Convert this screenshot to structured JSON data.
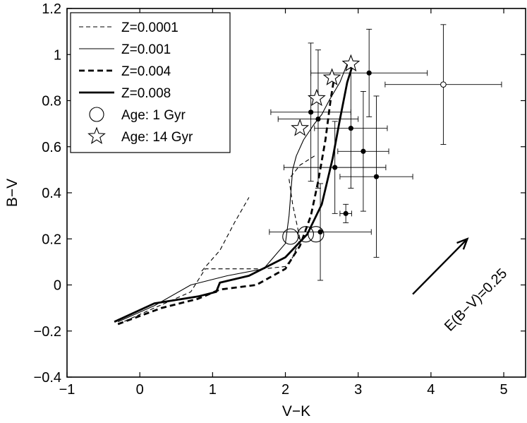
{
  "chart_data": {
    "type": "scatter",
    "xlabel": "V−K",
    "ylabel": "B−V",
    "xlim": [
      -1,
      5.3
    ],
    "ylim": [
      -0.4,
      1.2
    ],
    "xticks": [
      -1,
      0,
      1,
      2,
      3,
      4,
      5
    ],
    "yticks": [
      -0.4,
      -0.2,
      0,
      0.2,
      0.4,
      0.6,
      0.8,
      1,
      1.2
    ],
    "xtick_labels": [
      "−1",
      "0",
      "1",
      "2",
      "3",
      "4",
      "5"
    ],
    "ytick_labels": [
      "−0.4",
      "−0.2",
      "0",
      "0.2",
      "0.4",
      "0.6",
      "0.8",
      "1",
      "1.2"
    ],
    "grid": false,
    "legend_position": "top-left",
    "series": [
      {
        "name": "Z=0.0001",
        "kind": "line",
        "style": "thin-dashed",
        "x": [
          -0.3,
          0.2,
          0.7,
          0.9,
          1.3,
          1.7,
          2.0,
          2.1,
          2.2,
          2.1,
          2.05,
          2.2,
          2.4
        ],
        "y": [
          -0.17,
          -0.1,
          -0.03,
          0.07,
          0.07,
          0.07,
          0.08,
          0.12,
          0.2,
          0.35,
          0.46,
          0.52,
          0.56
        ]
      },
      {
        "name": "",
        "kind": "line",
        "style": "thin-dashed",
        "x": [
          0.85,
          1.1,
          1.3,
          1.5
        ],
        "y": [
          0.06,
          0.15,
          0.27,
          0.38
        ]
      },
      {
        "name": "Z=0.001",
        "kind": "line",
        "style": "thin-solid",
        "x": [
          -0.3,
          0.2,
          0.7,
          1.2,
          1.7,
          2.0,
          2.05,
          2.1,
          2.15,
          2.25,
          2.4,
          2.5,
          2.6,
          2.75,
          2.85
        ],
        "y": [
          -0.16,
          -0.09,
          0.0,
          0.04,
          0.07,
          0.18,
          0.3,
          0.5,
          0.56,
          0.63,
          0.7,
          0.74,
          0.8,
          0.88,
          0.96
        ]
      },
      {
        "name": "Z=0.004",
        "kind": "line",
        "style": "thick-dashed",
        "x": [
          -0.3,
          0.3,
          0.8,
          1.1,
          1.6,
          2.0,
          2.2,
          2.35,
          2.45,
          2.55,
          2.62,
          2.67
        ],
        "y": [
          -0.17,
          -0.1,
          -0.06,
          -0.02,
          0.0,
          0.07,
          0.17,
          0.3,
          0.45,
          0.63,
          0.8,
          0.9
        ]
      },
      {
        "name": "Z=0.008",
        "kind": "line",
        "style": "thick-solid",
        "x": [
          -0.35,
          0.2,
          0.8,
          1.05,
          1.1,
          1.5,
          2.0,
          2.3,
          2.5,
          2.65,
          2.75,
          2.85,
          2.93
        ],
        "y": [
          -0.16,
          -0.08,
          -0.05,
          -0.03,
          0.01,
          0.04,
          0.12,
          0.22,
          0.35,
          0.55,
          0.72,
          0.88,
          0.96
        ]
      },
      {
        "name": "Age: 1 Gyr",
        "kind": "markers",
        "marker": "circle",
        "x": [
          2.07,
          2.28,
          2.42
        ],
        "y": [
          0.21,
          0.22,
          0.22
        ]
      },
      {
        "name": "Age: 14 Gyr",
        "kind": "markers",
        "marker": "star",
        "x": [
          2.2,
          2.43,
          2.64,
          2.9
        ],
        "y": [
          0.68,
          0.81,
          0.9,
          0.96
        ]
      },
      {
        "name": "",
        "kind": "errorbar",
        "marker": "filled-circle",
        "points": [
          {
            "x": 2.35,
            "y": 0.75,
            "xerr": 0.55,
            "yerr": 0.3
          },
          {
            "x": 2.45,
            "y": 0.72,
            "xerr": 0.55,
            "yerr": 0.3
          },
          {
            "x": 3.15,
            "y": 0.92,
            "xerr": 0.8,
            "yerr": 0.19
          },
          {
            "x": 2.9,
            "y": 0.68,
            "xerr": 0.5,
            "yerr": 0.26
          },
          {
            "x": 3.07,
            "y": 0.58,
            "xerr": 0.35,
            "yerr": 0.26
          },
          {
            "x": 2.68,
            "y": 0.51,
            "xerr": 0.7,
            "yerr": 0.2
          },
          {
            "x": 3.25,
            "y": 0.47,
            "xerr": 0.5,
            "yerr": 0.35
          },
          {
            "x": 2.83,
            "y": 0.31,
            "xerr": 0.08,
            "yerr": 0.04
          },
          {
            "x": 2.48,
            "y": 0.23,
            "xerr": 0.7,
            "yerr": 0.21
          }
        ]
      },
      {
        "name": "",
        "kind": "errorbar",
        "marker": "open-circle",
        "points": [
          {
            "x": 4.17,
            "y": 0.87,
            "xerr": 0.8,
            "yerr": 0.26
          }
        ]
      }
    ],
    "annotations": [
      {
        "text": "E(B−V)=0.25",
        "rotation_deg": -45
      }
    ],
    "reddening_arrow": {
      "x_start": 3.75,
      "y_start": -0.04,
      "x_end": 4.5,
      "y_end": 0.2
    }
  }
}
